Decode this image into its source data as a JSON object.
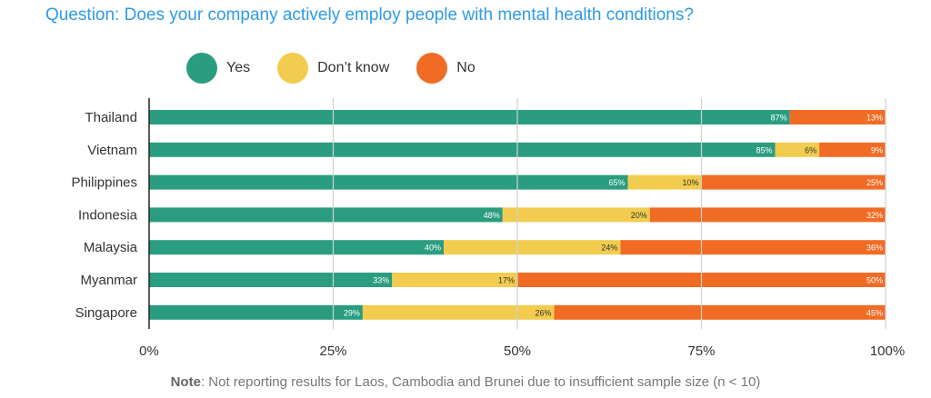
{
  "title": "Question: Does your company actively employ people with mental health conditions?",
  "legend": [
    {
      "name": "Yes",
      "color": "#2a9d80"
    },
    {
      "name": "Don’t know",
      "color": "#f2cc4f"
    },
    {
      "name": "No",
      "color": "#f06c24"
    }
  ],
  "chart_data": {
    "type": "bar",
    "orientation": "horizontal",
    "stacked": true,
    "categories": [
      "Thailand",
      "Vietnam",
      "Philippines",
      "Indonesia",
      "Malaysia",
      "Myanmar",
      "Singapore"
    ],
    "series": [
      {
        "name": "Yes",
        "color": "#2a9d80",
        "values": [
          87,
          85,
          65,
          48,
          40,
          33,
          29
        ],
        "labels": [
          "87%",
          "85%",
          "65%",
          "48%",
          "40%",
          "33%",
          "29%"
        ]
      },
      {
        "name": "Don’t know",
        "color": "#f2cc4f",
        "values": [
          0,
          6,
          10,
          20,
          24,
          17,
          26
        ],
        "labels": [
          "",
          "6%",
          "10%",
          "20%",
          "24%",
          "17%",
          "26%"
        ]
      },
      {
        "name": "No",
        "color": "#f06c24",
        "values": [
          13,
          9,
          25,
          32,
          36,
          50,
          45
        ],
        "labels": [
          "13%",
          "9%",
          "25%",
          "32%",
          "36%",
          "50%",
          "45%"
        ]
      }
    ],
    "xlim": [
      0,
      100
    ],
    "xticks": [
      0,
      25,
      50,
      75,
      100
    ],
    "xtick_labels": [
      "0%",
      "25%",
      "50%",
      "75%",
      "100%"
    ],
    "grid": true,
    "legend_position": "top"
  },
  "note": {
    "label": "Note",
    "text": ": Not reporting results for Laos, Cambodia and Brunei due to insufficient sample size (n < 10)"
  }
}
